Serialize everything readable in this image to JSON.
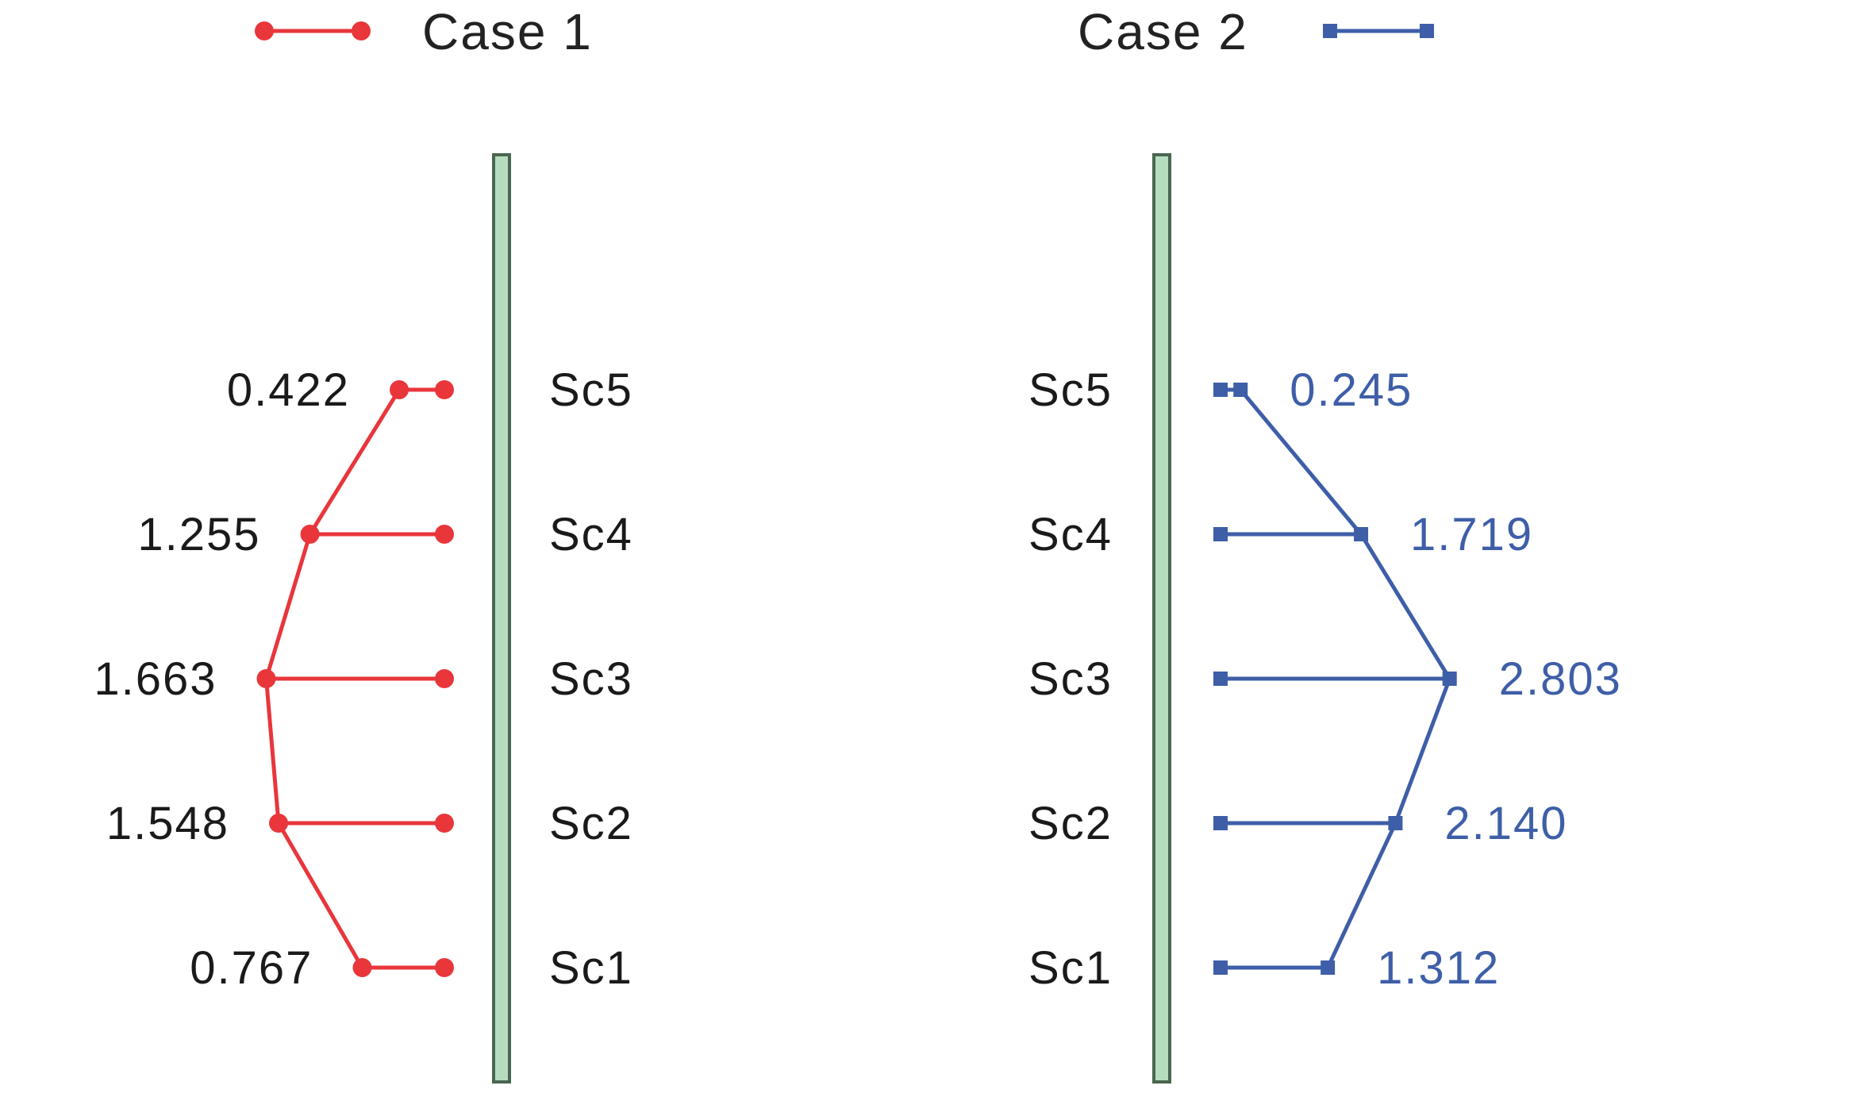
{
  "chart_data": {
    "type": "line",
    "categories": [
      "Sc1",
      "Sc2",
      "Sc3",
      "Sc4",
      "Sc5"
    ],
    "series": [
      {
        "name": "Case 1",
        "values": [
          0.767,
          1.548,
          1.663,
          1.255,
          0.422
        ],
        "labels": [
          "0.767",
          "1.548",
          "1.663",
          "1.255",
          "0.422"
        ],
        "color": "#e8363b",
        "marker": "circle",
        "direction": "left"
      },
      {
        "name": "Case 2",
        "values": [
          1.312,
          2.14,
          2.803,
          1.719,
          0.245
        ],
        "labels": [
          "1.312",
          "2.140",
          "2.803",
          "1.719",
          "0.245"
        ],
        "color": "#3e5ea8",
        "marker": "square",
        "direction": "right"
      }
    ],
    "title": "",
    "xlabel": "",
    "ylabel": "",
    "legend_position": "top",
    "wall_color": "#b6dcbf",
    "wall_stroke": "#4a6650",
    "grid": false
  }
}
